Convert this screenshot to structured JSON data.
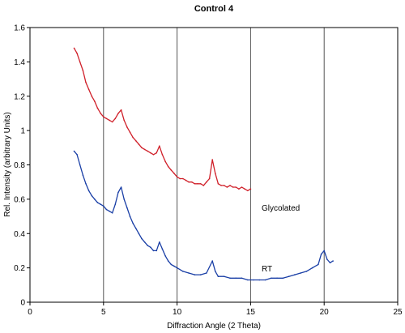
{
  "chart_data": {
    "type": "line",
    "title": "Control 4",
    "xlabel": "Diffraction Angle (2 Theta)",
    "ylabel": "Rel. Intensity (arbitrary Units)",
    "xlim": [
      0,
      25
    ],
    "ylim": [
      0,
      1.6
    ],
    "x_ticks": [
      "0",
      "5",
      "10",
      "15",
      "20",
      "25"
    ],
    "y_ticks": [
      "0",
      "0.2",
      "0.4",
      "0.6",
      "0.8",
      "1",
      "1.2",
      "1.4",
      "1.6"
    ],
    "vertical_gridlines_at": [
      5,
      10,
      15,
      20
    ],
    "annotations": [
      {
        "text": "Glycolated",
        "series": "Glycolated"
      },
      {
        "text": "RT",
        "series": "RT"
      }
    ],
    "series": [
      {
        "name": "Glycolated",
        "color": "#d0202a",
        "x": [
          3.0,
          3.2,
          3.4,
          3.6,
          3.8,
          4.0,
          4.2,
          4.4,
          4.6,
          4.8,
          5.0,
          5.2,
          5.4,
          5.6,
          5.8,
          6.0,
          6.2,
          6.4,
          6.6,
          6.8,
          7.0,
          7.2,
          7.4,
          7.6,
          7.8,
          8.0,
          8.2,
          8.4,
          8.6,
          8.8,
          9.0,
          9.2,
          9.4,
          9.6,
          9.8,
          10.0,
          10.2,
          10.4,
          10.6,
          10.8,
          11.0,
          11.2,
          11.4,
          11.6,
          11.8,
          12.0,
          12.2,
          12.4,
          12.6,
          12.8,
          13.0,
          13.2,
          13.4,
          13.6,
          13.8,
          14.0,
          14.2,
          14.4,
          14.6,
          14.8,
          15.0
        ],
        "y": [
          1.48,
          1.45,
          1.4,
          1.35,
          1.28,
          1.24,
          1.2,
          1.17,
          1.13,
          1.1,
          1.08,
          1.07,
          1.06,
          1.05,
          1.07,
          1.1,
          1.12,
          1.06,
          1.02,
          0.99,
          0.96,
          0.94,
          0.92,
          0.9,
          0.89,
          0.88,
          0.87,
          0.86,
          0.87,
          0.91,
          0.86,
          0.82,
          0.79,
          0.77,
          0.75,
          0.73,
          0.72,
          0.72,
          0.71,
          0.7,
          0.7,
          0.69,
          0.69,
          0.69,
          0.68,
          0.7,
          0.72,
          0.83,
          0.75,
          0.69,
          0.68,
          0.68,
          0.67,
          0.68,
          0.67,
          0.67,
          0.66,
          0.67,
          0.66,
          0.65,
          0.66
        ]
      },
      {
        "name": "RT",
        "color": "#1a3fa6",
        "x": [
          3.0,
          3.2,
          3.4,
          3.6,
          3.8,
          4.0,
          4.2,
          4.4,
          4.6,
          4.8,
          5.0,
          5.2,
          5.4,
          5.6,
          5.8,
          6.0,
          6.2,
          6.4,
          6.6,
          6.8,
          7.0,
          7.2,
          7.4,
          7.6,
          7.8,
          8.0,
          8.2,
          8.4,
          8.6,
          8.8,
          9.0,
          9.2,
          9.4,
          9.6,
          9.8,
          10.0,
          10.4,
          10.8,
          11.2,
          11.6,
          12.0,
          12.4,
          12.6,
          12.8,
          13.2,
          13.6,
          14.0,
          14.4,
          14.8,
          15.2,
          15.6,
          16.0,
          16.4,
          16.8,
          17.2,
          17.6,
          18.0,
          18.4,
          18.8,
          19.2,
          19.6,
          19.8,
          20.0,
          20.2,
          20.4,
          20.6
        ],
        "y": [
          0.88,
          0.86,
          0.8,
          0.74,
          0.69,
          0.65,
          0.62,
          0.6,
          0.58,
          0.57,
          0.56,
          0.54,
          0.53,
          0.52,
          0.57,
          0.64,
          0.67,
          0.6,
          0.55,
          0.5,
          0.46,
          0.43,
          0.4,
          0.37,
          0.35,
          0.33,
          0.32,
          0.3,
          0.3,
          0.35,
          0.31,
          0.27,
          0.24,
          0.22,
          0.21,
          0.2,
          0.18,
          0.17,
          0.16,
          0.16,
          0.17,
          0.24,
          0.18,
          0.15,
          0.15,
          0.14,
          0.14,
          0.14,
          0.13,
          0.13,
          0.13,
          0.13,
          0.14,
          0.14,
          0.14,
          0.15,
          0.16,
          0.17,
          0.18,
          0.2,
          0.22,
          0.28,
          0.3,
          0.25,
          0.23,
          0.24
        ]
      }
    ]
  }
}
